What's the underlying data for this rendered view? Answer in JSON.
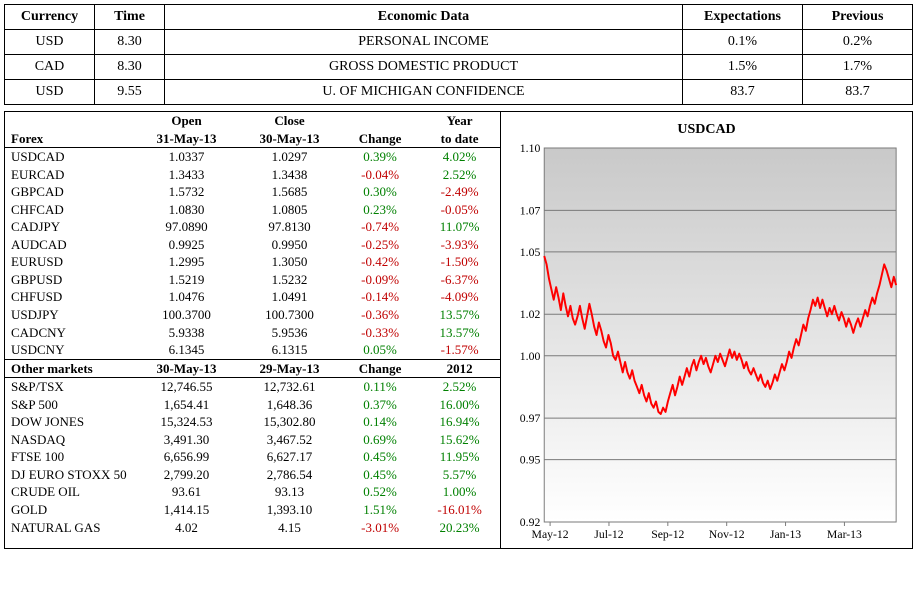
{
  "econ": {
    "headers": [
      "Currency",
      "Time",
      "Economic Data",
      "Expectations",
      "Previous"
    ],
    "rows": [
      {
        "currency": "USD",
        "time": "8.30",
        "data": "PERSONAL INCOME",
        "exp": "0.1%",
        "prev": "0.2%"
      },
      {
        "currency": "CAD",
        "time": "8.30",
        "data": "GROSS DOMESTIC PRODUCT",
        "exp": "1.5%",
        "prev": "1.7%"
      },
      {
        "currency": "USD",
        "time": "9.55",
        "data": "U. OF MICHIGAN CONFIDENCE",
        "exp": "83.7",
        "prev": "83.7"
      }
    ]
  },
  "forex": {
    "header_label": "Forex",
    "col_open_top": "Open",
    "col_open_bot": "31-May-13",
    "col_close_top": "Close",
    "col_close_bot": "30-May-13",
    "col_change": "Change",
    "col_ytd_top": "Year",
    "col_ytd_bot": "to date",
    "rows": [
      {
        "name": "USDCAD",
        "open": "1.0337",
        "close": "1.0297",
        "chg": "0.39%",
        "chg_pos": true,
        "ytd": "4.02%",
        "ytd_pos": true
      },
      {
        "name": "EURCAD",
        "open": "1.3433",
        "close": "1.3438",
        "chg": "-0.04%",
        "chg_pos": false,
        "ytd": "2.52%",
        "ytd_pos": true
      },
      {
        "name": "GBPCAD",
        "open": "1.5732",
        "close": "1.5685",
        "chg": "0.30%",
        "chg_pos": true,
        "ytd": "-2.49%",
        "ytd_pos": false
      },
      {
        "name": "CHFCAD",
        "open": "1.0830",
        "close": "1.0805",
        "chg": "0.23%",
        "chg_pos": true,
        "ytd": "-0.05%",
        "ytd_pos": false
      },
      {
        "name": "CADJPY",
        "open": "97.0890",
        "close": "97.8130",
        "chg": "-0.74%",
        "chg_pos": false,
        "ytd": "11.07%",
        "ytd_pos": true
      },
      {
        "name": "AUDCAD",
        "open": "0.9925",
        "close": "0.9950",
        "chg": "-0.25%",
        "chg_pos": false,
        "ytd": "-3.93%",
        "ytd_pos": false
      },
      {
        "name": "EURUSD",
        "open": "1.2995",
        "close": "1.3050",
        "chg": "-0.42%",
        "chg_pos": false,
        "ytd": "-1.50%",
        "ytd_pos": false
      },
      {
        "name": "GBPUSD",
        "open": "1.5219",
        "close": "1.5232",
        "chg": "-0.09%",
        "chg_pos": false,
        "ytd": "-6.37%",
        "ytd_pos": false
      },
      {
        "name": "CHFUSD",
        "open": "1.0476",
        "close": "1.0491",
        "chg": "-0.14%",
        "chg_pos": false,
        "ytd": "-4.09%",
        "ytd_pos": false
      },
      {
        "name": "USDJPY",
        "open": "100.3700",
        "close": "100.7300",
        "chg": "-0.36%",
        "chg_pos": false,
        "ytd": "13.57%",
        "ytd_pos": true
      },
      {
        "name": "CADCNY",
        "open": "5.9338",
        "close": "5.9536",
        "chg": "-0.33%",
        "chg_pos": false,
        "ytd": "13.57%",
        "ytd_pos": true
      },
      {
        "name": "USDCNY",
        "open": "6.1345",
        "close": "6.1315",
        "chg": "0.05%",
        "chg_pos": true,
        "ytd": "-1.57%",
        "ytd_pos": false
      }
    ]
  },
  "other": {
    "header_label": "Other markets",
    "col_open": "30-May-13",
    "col_close": "29-May-13",
    "col_change": "Change",
    "col_ytd": "2012",
    "rows": [
      {
        "name": "S&P/TSX",
        "open": "12,746.55",
        "close": "12,732.61",
        "chg": "0.11%",
        "chg_pos": true,
        "ytd": "2.52%",
        "ytd_pos": true
      },
      {
        "name": "S&P 500",
        "open": "1,654.41",
        "close": "1,648.36",
        "chg": "0.37%",
        "chg_pos": true,
        "ytd": "16.00%",
        "ytd_pos": true
      },
      {
        "name": "DOW JONES",
        "open": "15,324.53",
        "close": "15,302.80",
        "chg": "0.14%",
        "chg_pos": true,
        "ytd": "16.94%",
        "ytd_pos": true
      },
      {
        "name": "NASDAQ",
        "open": "3,491.30",
        "close": "3,467.52",
        "chg": "0.69%",
        "chg_pos": true,
        "ytd": "15.62%",
        "ytd_pos": true
      },
      {
        "name": "FTSE 100",
        "open": "6,656.99",
        "close": "6,627.17",
        "chg": "0.45%",
        "chg_pos": true,
        "ytd": "11.95%",
        "ytd_pos": true
      },
      {
        "name": "DJ EURO STOXX 50",
        "open": "2,799.20",
        "close": "2,786.54",
        "chg": "0.45%",
        "chg_pos": true,
        "ytd": "5.57%",
        "ytd_pos": true
      },
      {
        "name": "CRUDE OIL",
        "open": "93.61",
        "close": "93.13",
        "chg": "0.52%",
        "chg_pos": true,
        "ytd": "1.00%",
        "ytd_pos": true
      },
      {
        "name": "GOLD",
        "open": "1,414.15",
        "close": "1,393.10",
        "chg": "1.51%",
        "chg_pos": true,
        "ytd": "-16.01%",
        "ytd_pos": false
      },
      {
        "name": "NATURAL GAS",
        "open": "4.02",
        "close": "4.15",
        "chg": "-3.01%",
        "chg_pos": false,
        "ytd": "20.23%",
        "ytd_pos": true
      }
    ]
  },
  "chart": {
    "title": "USDCAD",
    "ylim": [
      0.92,
      1.1
    ],
    "yticks": [
      0.92,
      0.95,
      0.97,
      1.0,
      1.02,
      1.05,
      1.07,
      1.1
    ],
    "xticks": [
      "May-12",
      "Jul-12",
      "Sep-12",
      "Nov-12",
      "Jan-13",
      "Mar-13"
    ],
    "line_color": "#ff0000",
    "line_width": 2,
    "grid_color": "#7a7a7a",
    "bg_top": "#c9c9c9",
    "bg_bot": "#ffffff",
    "series": [
      1.048,
      1.044,
      1.037,
      1.032,
      1.027,
      1.033,
      1.028,
      1.022,
      1.03,
      1.024,
      1.019,
      1.024,
      1.018,
      1.015,
      1.019,
      1.024,
      1.018,
      1.013,
      1.019,
      1.025,
      1.02,
      1.014,
      1.01,
      1.016,
      1.012,
      1.007,
      1.004,
      1.01,
      1.006,
      1.0,
      0.998,
      1.002,
      0.997,
      0.992,
      0.997,
      0.992,
      0.989,
      0.993,
      0.988,
      0.985,
      0.982,
      0.986,
      0.981,
      0.978,
      0.982,
      0.977,
      0.975,
      0.978,
      0.973,
      0.972,
      0.975,
      0.973,
      0.978,
      0.982,
      0.986,
      0.981,
      0.985,
      0.99,
      0.986,
      0.99,
      0.994,
      0.99,
      0.995,
      0.998,
      0.993,
      0.997,
      1.0,
      0.996,
      0.999,
      0.995,
      0.992,
      0.996,
      1.0,
      0.997,
      1.001,
      0.998,
      0.995,
      0.999,
      1.003,
      0.999,
      1.002,
      0.998,
      1.001,
      0.998,
      0.994,
      0.997,
      0.993,
      0.991,
      0.994,
      0.991,
      0.988,
      0.991,
      0.987,
      0.985,
      0.988,
      0.984,
      0.987,
      0.991,
      0.988,
      0.992,
      0.996,
      0.993,
      0.997,
      1.002,
      0.999,
      1.004,
      1.008,
      1.005,
      1.01,
      1.015,
      1.012,
      1.018,
      1.022,
      1.027,
      1.024,
      1.028,
      1.023,
      1.027,
      1.023,
      1.019,
      1.023,
      1.02,
      1.024,
      1.02,
      1.017,
      1.021,
      1.018,
      1.014,
      1.018,
      1.015,
      1.011,
      1.015,
      1.018,
      1.014,
      1.018,
      1.022,
      1.019,
      1.024,
      1.028,
      1.025,
      1.03,
      1.034,
      1.039,
      1.044,
      1.041,
      1.037,
      1.033,
      1.038,
      1.034
    ]
  }
}
